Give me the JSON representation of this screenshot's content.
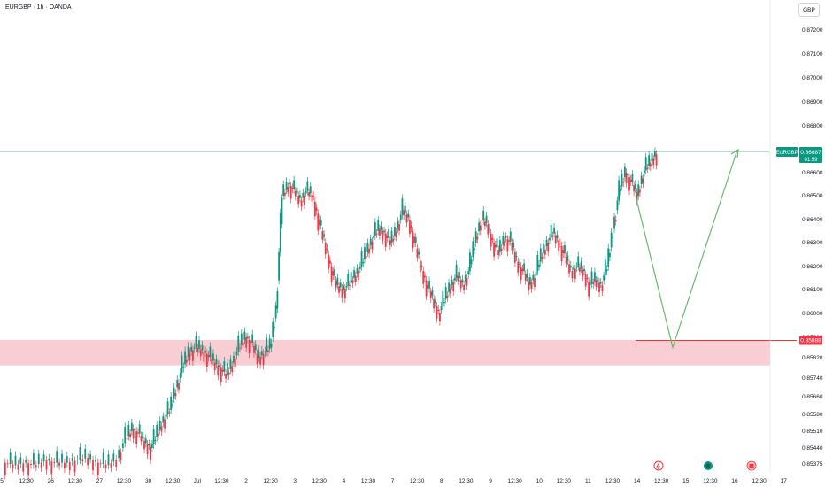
{
  "header": {
    "title": "EURGBP · 1h · OANDA",
    "currency": "GBP"
  },
  "chart_data": {
    "type": "candlestick",
    "title": "EURGBP · 1h · OANDA",
    "symbol": "EURGBP",
    "currency": "GBP",
    "ylim": [
      0.8532,
      0.8732
    ],
    "y_ticks": [
      "0.87200",
      "0.87100",
      "0.87000",
      "0.86900",
      "0.86800",
      "0.86700",
      "0.86600",
      "0.86500",
      "0.86400",
      "0.86300",
      "0.86200",
      "0.86100",
      "0.86000",
      "0.85900",
      "0.85820",
      "0.85740",
      "0.85660",
      "0.85580",
      "0.85510",
      "0.85440",
      "0.85375"
    ],
    "x_ticks": [
      "5",
      "12:30",
      "26",
      "12:30",
      "27",
      "12:30",
      "30",
      "12:30",
      "Jul",
      "12:30",
      "2",
      "12:30",
      "3",
      "12:30",
      "4",
      "12:30",
      "7",
      "12:30",
      "8",
      "12:30",
      "9",
      "12:30",
      "10",
      "12:30",
      "11",
      "12:30",
      "14",
      "12:30",
      "15",
      "12:30",
      "16",
      "12:30",
      "17"
    ],
    "price_label": {
      "symbol": "EURGBP",
      "price": "0.86687",
      "countdown": "01:59"
    },
    "support_label": "0.85888",
    "support_zone": [
      0.8579,
      0.8589
    ],
    "resistance_level": 0.8669,
    "projection": [
      {
        "x_index": 1340,
        "price": 0.865
      },
      {
        "x_index": 1375,
        "price": 0.8586
      },
      {
        "x_index": 1415,
        "price": 0.867
      }
    ],
    "series_close": [
      0.8538,
      0.8537,
      0.8538,
      0.8537,
      0.8539,
      0.8538,
      0.8538,
      0.8539,
      0.854,
      0.8538,
      0.8537,
      0.854,
      0.8548,
      0.8552,
      0.855,
      0.8546,
      0.8544,
      0.855,
      0.8556,
      0.856,
      0.857,
      0.8578,
      0.8584,
      0.8586,
      0.8585,
      0.8583,
      0.858,
      0.8578,
      0.8575,
      0.858,
      0.8586,
      0.859,
      0.8588,
      0.8582,
      0.8584,
      0.8586,
      0.8602,
      0.865,
      0.8655,
      0.8652,
      0.8648,
      0.8652,
      0.865,
      0.864,
      0.863,
      0.862,
      0.8612,
      0.861,
      0.8612,
      0.8616,
      0.862,
      0.8626,
      0.8632,
      0.8636,
      0.8634,
      0.863,
      0.8636,
      0.8644,
      0.864,
      0.863,
      0.862,
      0.8612,
      0.8606,
      0.86,
      0.8606,
      0.8612,
      0.8616,
      0.8612,
      0.8618,
      0.863,
      0.864,
      0.8638,
      0.863,
      0.8626,
      0.8632,
      0.863,
      0.8622,
      0.8618,
      0.8612,
      0.8616,
      0.8624,
      0.863,
      0.8634,
      0.863,
      0.8624,
      0.8618,
      0.862,
      0.8618,
      0.8612,
      0.8614,
      0.8612,
      0.862,
      0.8636,
      0.8652,
      0.866,
      0.8656,
      0.865,
      0.866,
      0.8664,
      0.8668
    ]
  }
}
